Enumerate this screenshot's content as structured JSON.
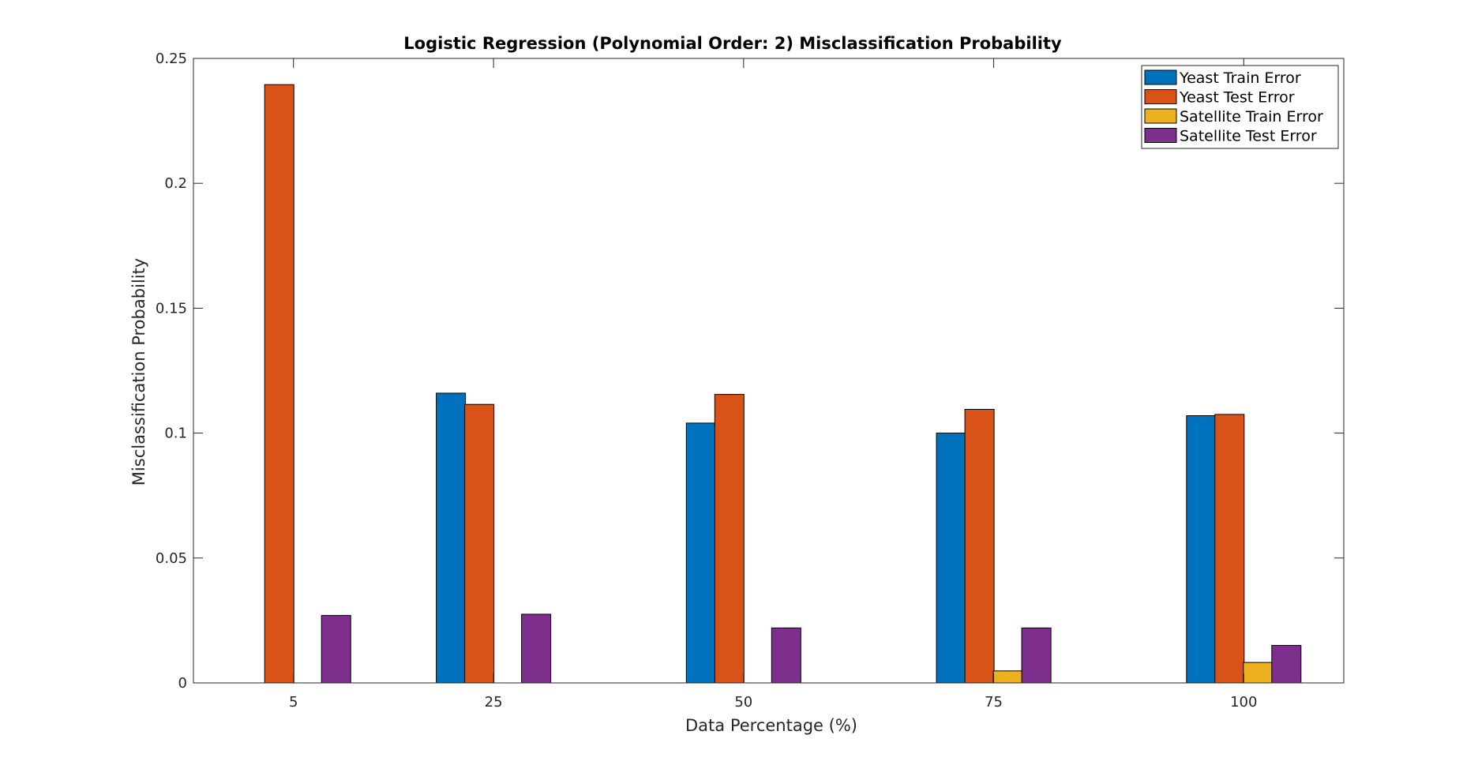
{
  "chart_data": {
    "type": "bar",
    "title": "Logistic Regression (Polynomial Order: 2) Misclassification Probability",
    "xlabel": "Data Percentage (%)",
    "ylabel": "Misclassification Probability",
    "categories": [
      "5",
      "25",
      "50",
      "75",
      "100"
    ],
    "category_values": [
      5,
      25,
      50,
      75,
      100
    ],
    "xlim": [
      -5,
      110
    ],
    "ylim": [
      0,
      0.25
    ],
    "yticks": [
      0,
      0.05,
      0.1,
      0.15,
      0.2,
      0.25
    ],
    "ytick_labels": [
      "0",
      "0.05",
      "0.1",
      "0.15",
      "0.2",
      "0.25"
    ],
    "grid": false,
    "legend_position": "top-right",
    "series": [
      {
        "name": "Yeast Train Error",
        "color": "#0072BD",
        "values": [
          0,
          0.116,
          0.104,
          0.1,
          0.107
        ]
      },
      {
        "name": "Yeast Test Error",
        "color": "#D95319",
        "values": [
          0.2395,
          0.1115,
          0.1155,
          0.1095,
          0.1075
        ]
      },
      {
        "name": "Satellite Train Error",
        "color": "#EDB120",
        "values": [
          0,
          0,
          0,
          0.0048,
          0.0082
        ]
      },
      {
        "name": "Satellite Test Error",
        "color": "#7E2F8E",
        "values": [
          0.027,
          0.0275,
          0.022,
          0.022,
          0.015
        ]
      }
    ]
  }
}
